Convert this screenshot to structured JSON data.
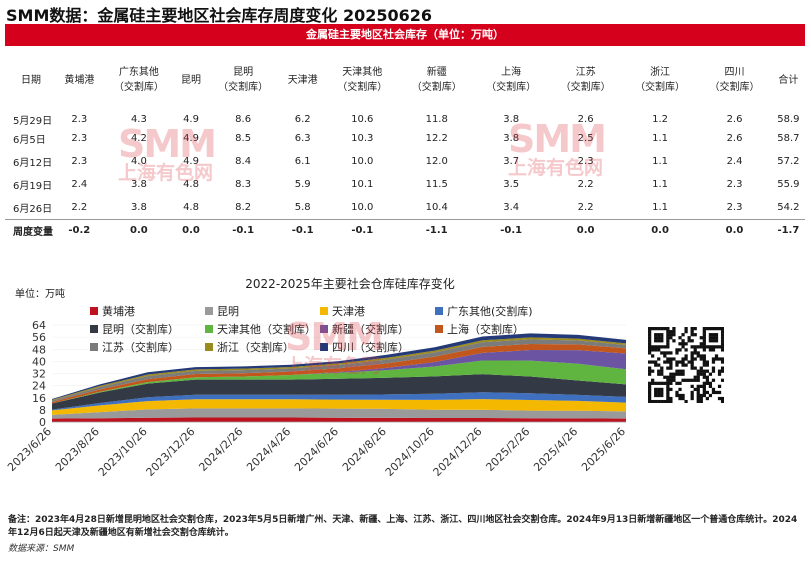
{
  "header": {
    "title": "SMM数据：金属硅主要地区社会库存周度变化 20250626",
    "banner": "金属硅主要地区社会库存（单位：万吨）"
  },
  "table": {
    "columns": [
      {
        "l1": "日期",
        "l2": ""
      },
      {
        "l1": "黄埔港",
        "l2": ""
      },
      {
        "l1": "广东其他",
        "l2": "（交割库）"
      },
      {
        "l1": "昆明",
        "l2": ""
      },
      {
        "l1": "昆明",
        "l2": "（交割库）"
      },
      {
        "l1": "天津港",
        "l2": ""
      },
      {
        "l1": "天津其他",
        "l2": "（交割库）"
      },
      {
        "l1": "新疆",
        "l2": "（交割库）"
      },
      {
        "l1": "上海",
        "l2": "（交割库）"
      },
      {
        "l1": "江苏",
        "l2": "（交割库）"
      },
      {
        "l1": "浙江",
        "l2": "（交割库）"
      },
      {
        "l1": "四川",
        "l2": "（交割库）"
      },
      {
        "l1": "合计",
        "l2": ""
      }
    ],
    "rows": [
      [
        "5月29日",
        "2.3",
        "4.3",
        "4.9",
        "8.6",
        "6.2",
        "10.6",
        "11.8",
        "3.8",
        "2.6",
        "1.2",
        "2.6",
        "58.9"
      ],
      [
        "6月5日",
        "2.3",
        "4.2",
        "4.9",
        "8.5",
        "6.3",
        "10.3",
        "12.2",
        "3.8",
        "2.5",
        "1.1",
        "2.6",
        "58.7"
      ],
      [
        "6月12日",
        "2.3",
        "4.0",
        "4.9",
        "8.4",
        "6.1",
        "10.0",
        "12.0",
        "3.7",
        "2.3",
        "1.1",
        "2.4",
        "57.2"
      ],
      [
        "6月19日",
        "2.4",
        "3.8",
        "4.8",
        "8.3",
        "5.9",
        "10.1",
        "11.5",
        "3.5",
        "2.2",
        "1.1",
        "2.3",
        "55.9"
      ],
      [
        "6月26日",
        "2.2",
        "3.8",
        "4.8",
        "8.2",
        "5.8",
        "10.0",
        "10.4",
        "3.4",
        "2.2",
        "1.1",
        "2.3",
        "54.2"
      ]
    ],
    "change_row": [
      "周度变量",
      "-0.2",
      "0.0",
      "0.0",
      "-0.1",
      "-0.1",
      "-0.1",
      "-1.1",
      "-0.1",
      "0.0",
      "0.0",
      "0.0",
      "-1.7"
    ]
  },
  "chart_data": {
    "type": "area",
    "title": "2022-2025年主要社会仓库硅库存变化",
    "unit_label": "单位：万吨",
    "ylim": [
      0,
      64
    ],
    "yticks": [
      0,
      8,
      16,
      24,
      32,
      40,
      48,
      56,
      64
    ],
    "x": [
      "2023/6/26",
      "2023/8/26",
      "2023/10/26",
      "2023/12/26",
      "2024/2/26",
      "2024/4/26",
      "2024/6/26",
      "2024/8/26",
      "2024/10/26",
      "2024/12/26",
      "2025/2/26",
      "2025/4/26",
      "2025/6/26"
    ],
    "legend_placement": "top",
    "series": [
      {
        "name": "黄埔港",
        "color": "#c0111f",
        "values": [
          2.2,
          2.5,
          2.8,
          3.0,
          3.0,
          3.0,
          2.8,
          2.7,
          2.6,
          2.6,
          2.5,
          2.4,
          2.2
        ]
      },
      {
        "name": "昆明",
        "color": "#9a9a9a",
        "values": [
          2.5,
          4.0,
          5.5,
          6.0,
          6.0,
          6.0,
          6.0,
          6.0,
          5.5,
          5.5,
          5.0,
          5.0,
          4.8
        ]
      },
      {
        "name": "天津港",
        "color": "#f5b800",
        "values": [
          3.0,
          4.5,
          5.5,
          6.0,
          6.0,
          6.0,
          6.0,
          6.0,
          6.5,
          7.0,
          7.0,
          6.5,
          5.8
        ]
      },
      {
        "name": "广东其他(交割库)",
        "color": "#3f6fbf",
        "values": [
          0.5,
          1.5,
          2.5,
          3.0,
          3.0,
          3.0,
          3.2,
          3.5,
          4.0,
          4.5,
          4.5,
          4.0,
          3.8
        ]
      },
      {
        "name": "昆明（交割库）",
        "color": "#333a45",
        "values": [
          4.0,
          7.0,
          9.0,
          10.0,
          10.0,
          10.0,
          10.5,
          11.0,
          11.5,
          12.0,
          11.0,
          9.5,
          8.2
        ]
      },
      {
        "name": "天津其他（交割库）",
        "color": "#5fb540",
        "values": [
          0.0,
          0.5,
          1.0,
          1.5,
          2.0,
          3.0,
          4.0,
          5.0,
          6.5,
          9.0,
          10.5,
          11.0,
          10.0
        ]
      },
      {
        "name": "新疆（交割库）",
        "color": "#6b55a3",
        "values": [
          0.0,
          0.0,
          0.0,
          0.0,
          0.0,
          0.0,
          0.5,
          1.5,
          3.0,
          5.0,
          7.0,
          9.0,
          10.4
        ]
      },
      {
        "name": "上海（交割库）",
        "color": "#c2571d",
        "values": [
          1.0,
          1.5,
          2.0,
          2.2,
          2.2,
          2.3,
          2.5,
          3.0,
          3.5,
          4.0,
          4.0,
          3.8,
          3.4
        ]
      },
      {
        "name": "江苏（交割库）",
        "color": "#7b7b7b",
        "values": [
          1.0,
          1.5,
          2.0,
          2.0,
          2.0,
          2.0,
          2.2,
          2.5,
          2.8,
          3.0,
          3.0,
          2.6,
          2.2
        ]
      },
      {
        "name": "浙江（交割库）",
        "color": "#9b8a1c",
        "values": [
          0.5,
          0.8,
          1.0,
          1.0,
          1.0,
          1.0,
          1.0,
          1.2,
          1.2,
          1.3,
          1.3,
          1.2,
          1.1
        ]
      },
      {
        "name": "四川（交割库）",
        "color": "#243a78",
        "values": [
          0.5,
          1.0,
          1.5,
          1.5,
          1.5,
          1.5,
          1.5,
          2.0,
          2.2,
          2.5,
          2.7,
          2.5,
          2.3
        ]
      }
    ]
  },
  "watermark": {
    "big": "SMM",
    "small": "上海有色网"
  },
  "footer": {
    "note": "备注：2023年4月28日新增昆明地区社会交割仓库，2023年5月5日新增广州、天津、新疆、上海、江苏、浙江、四川地区社会交割仓库。2024年9月13日新增新疆地区一个普通仓库统计。2024年12月6日起天津及新疆地区有新增社会交割仓库统计。",
    "source": "数据来源：SMM"
  }
}
